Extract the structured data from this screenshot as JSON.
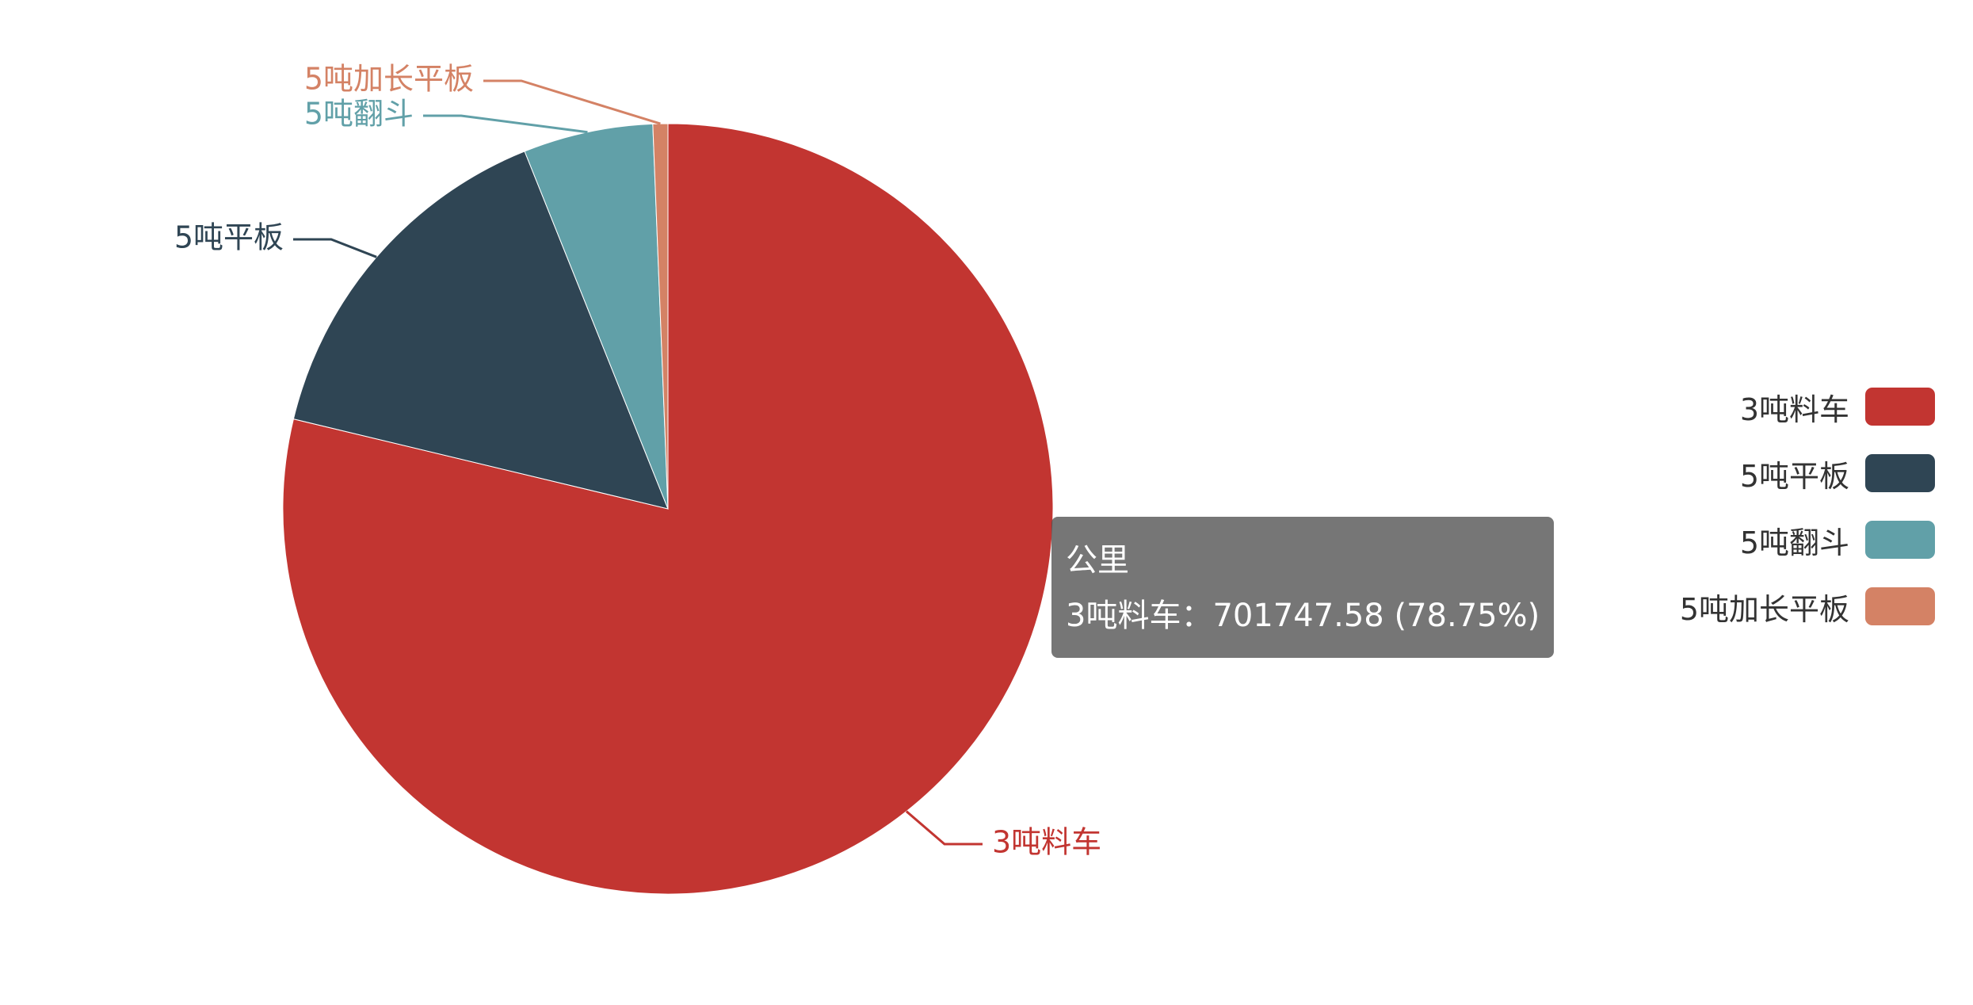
{
  "chart_data": {
    "type": "pie",
    "series_name": "公里",
    "start_angle_deg": 90,
    "categories": [
      "3吨料车",
      "5吨平板",
      "5吨翻斗",
      "5吨加长平板"
    ],
    "values": [
      701747.58,
      135300,
      48500,
      5600
    ],
    "percents": [
      78.75,
      15.18,
      5.44,
      0.63
    ],
    "colors": [
      "#c23531",
      "#2f4554",
      "#61a0a8",
      "#d48265"
    ],
    "legend": {
      "placement": "right",
      "items": [
        "3吨料车",
        "5吨平板",
        "5吨翻斗",
        "5吨加长平板"
      ]
    }
  },
  "tooltip": {
    "title": "公里",
    "text": "3吨料车：701747.58 (78.75%)"
  }
}
